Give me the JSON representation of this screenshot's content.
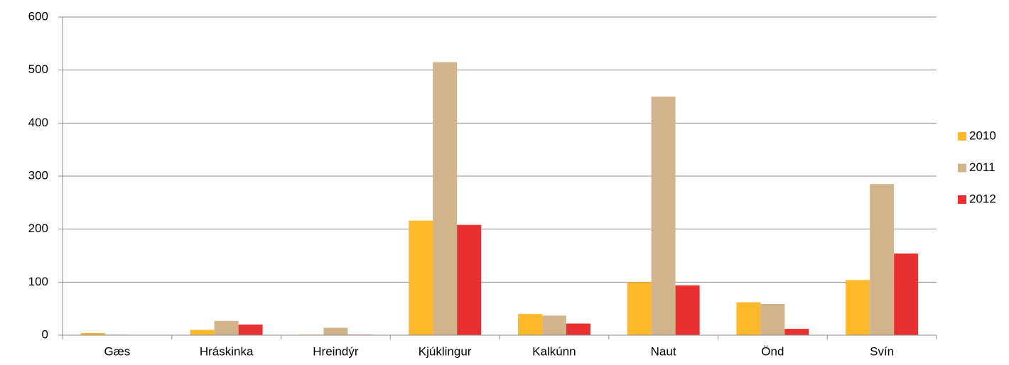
{
  "chart_data": {
    "type": "bar",
    "categories": [
      "Gæs",
      "Hráskinka",
      "Hreindýr",
      "Kjúklingur",
      "Kalkúnn",
      "Naut",
      "Önd",
      "Svín"
    ],
    "series": [
      {
        "name": "2010",
        "color": "#fdb92a",
        "values": [
          4,
          10,
          1,
          216,
          40,
          100,
          62,
          104
        ]
      },
      {
        "name": "2011",
        "color": "#d2b48c",
        "values": [
          1,
          27,
          14,
          515,
          37,
          450,
          59,
          285
        ]
      },
      {
        "name": "2012",
        "color": "#e83030",
        "values": [
          0,
          20,
          1,
          208,
          22,
          94,
          12,
          154
        ]
      }
    ],
    "ylim": [
      0,
      600
    ],
    "yticks": [
      0,
      100,
      200,
      300,
      400,
      500,
      600
    ],
    "grid": true,
    "legend": "right"
  }
}
